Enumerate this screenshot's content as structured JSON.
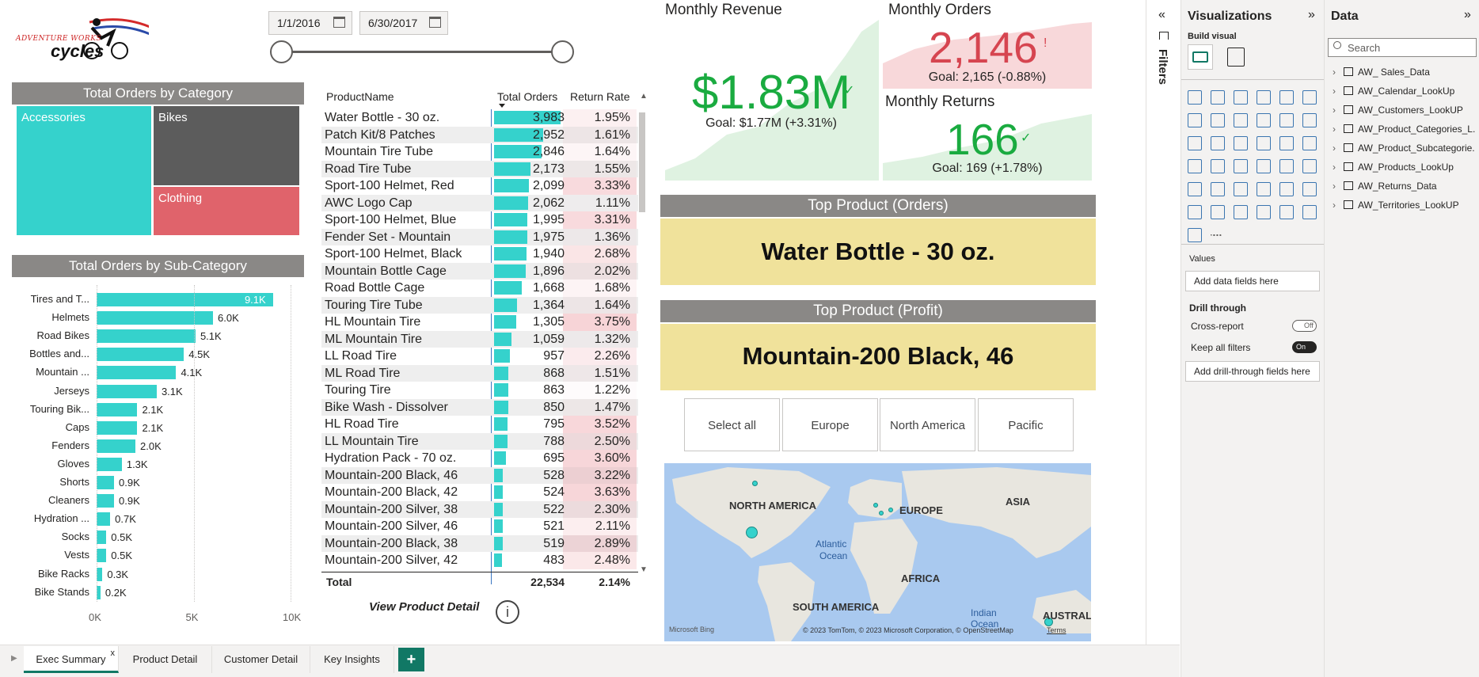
{
  "logo": {
    "text": "ADVENTURE WORKS",
    "text2": "cycles"
  },
  "date_range": {
    "start": "1/1/2016",
    "end": "6/30/2017"
  },
  "category_chart": {
    "title": "Total Orders by Category",
    "tiles": [
      {
        "label": "Accessories",
        "color": "#35d2cc"
      },
      {
        "label": "Bikes",
        "color": "#5c5c5c"
      },
      {
        "label": "Clothing",
        "color": "#e0636b"
      }
    ]
  },
  "subcategory_chart": {
    "title": "Total Orders by Sub-Category",
    "axis_ticks": [
      "0K",
      "5K",
      "10K"
    ]
  },
  "chart_data": {
    "type": "bar",
    "title": "Total Orders by Sub-Category",
    "categories": [
      "Tires and T...",
      "Helmets",
      "Road Bikes",
      "Bottles and...",
      "Mountain ...",
      "Jerseys",
      "Touring Bik...",
      "Caps",
      "Fenders",
      "Gloves",
      "Shorts",
      "Cleaners",
      "Hydration ...",
      "Socks",
      "Vests",
      "Bike Racks",
      "Bike Stands"
    ],
    "values": [
      9100,
      6000,
      5100,
      4500,
      4100,
      3100,
      2100,
      2100,
      2000,
      1300,
      900,
      900,
      700,
      500,
      500,
      300,
      200
    ],
    "labels": [
      "9.1K",
      "6.0K",
      "5.1K",
      "4.5K",
      "4.1K",
      "3.1K",
      "2.1K",
      "2.1K",
      "2.0K",
      "1.3K",
      "0.9K",
      "0.9K",
      "0.7K",
      "0.5K",
      "0.5K",
      "0.3K",
      "0.2K"
    ],
    "xlim": [
      0,
      10000
    ],
    "orientation": "horizontal"
  },
  "product_table": {
    "headers": [
      "ProductName",
      "Total Orders",
      "Return Rate"
    ],
    "rows": [
      [
        "Water Bottle - 30 oz.",
        "3,983",
        "1.95%"
      ],
      [
        "Patch Kit/8 Patches",
        "2,952",
        "1.61%"
      ],
      [
        "Mountain Tire Tube",
        "2,846",
        "1.64%"
      ],
      [
        "Road Tire Tube",
        "2,173",
        "1.55%"
      ],
      [
        "Sport-100 Helmet, Red",
        "2,099",
        "3.33%"
      ],
      [
        "AWC Logo Cap",
        "2,062",
        "1.11%"
      ],
      [
        "Sport-100 Helmet, Blue",
        "1,995",
        "3.31%"
      ],
      [
        "Fender Set - Mountain",
        "1,975",
        "1.36%"
      ],
      [
        "Sport-100 Helmet, Black",
        "1,940",
        "2.68%"
      ],
      [
        "Mountain Bottle Cage",
        "1,896",
        "2.02%"
      ],
      [
        "Road Bottle Cage",
        "1,668",
        "1.68%"
      ],
      [
        "Touring Tire Tube",
        "1,364",
        "1.64%"
      ],
      [
        "HL Mountain Tire",
        "1,305",
        "3.75%"
      ],
      [
        "ML Mountain Tire",
        "1,059",
        "1.32%"
      ],
      [
        "LL Road Tire",
        "957",
        "2.26%"
      ],
      [
        "ML Road Tire",
        "868",
        "1.51%"
      ],
      [
        "Touring Tire",
        "863",
        "1.22%"
      ],
      [
        "Bike Wash - Dissolver",
        "850",
        "1.47%"
      ],
      [
        "HL Road Tire",
        "795",
        "3.52%"
      ],
      [
        "LL Mountain Tire",
        "788",
        "2.50%"
      ],
      [
        "Hydration Pack - 70 oz.",
        "695",
        "3.60%"
      ],
      [
        "Mountain-200 Black, 46",
        "528",
        "3.22%"
      ],
      [
        "Mountain-200 Black, 42",
        "524",
        "3.63%"
      ],
      [
        "Mountain-200 Silver, 38",
        "522",
        "2.30%"
      ],
      [
        "Mountain-200 Silver, 46",
        "521",
        "2.11%"
      ],
      [
        "Mountain-200 Black, 38",
        "519",
        "2.89%"
      ],
      [
        "Mountain-200 Silver, 42",
        "483",
        "2.48%"
      ]
    ],
    "total": [
      "Total",
      "22,534",
      "2.14%"
    ],
    "detail_link": "View Product Detail"
  },
  "kpis": {
    "revenue": {
      "title": "Monthly Revenue",
      "value": "$1.83M",
      "goal": "Goal: $1.77M (+3.31%)",
      "status": "above",
      "color": "#1aab40"
    },
    "orders": {
      "title": "Monthly Orders",
      "value": "2,146",
      "goal": "Goal: 2,165 (-0.88%)",
      "status": "below",
      "color": "#d64550"
    },
    "returns": {
      "title": "Monthly Returns",
      "value": "166",
      "goal": "Goal: 169 (+1.78%)",
      "status": "above",
      "color": "#1aab40"
    }
  },
  "top_product": {
    "orders_title": "Top Product (Orders)",
    "orders_value": "Water Bottle - 30 oz.",
    "profit_title": "Top Product (Profit)",
    "profit_value": "Mountain-200 Black, 46"
  },
  "region_slicer": [
    "Select all",
    "Europe",
    "North America",
    "Pacific"
  ],
  "map": {
    "labels": [
      "NORTH AMERICA",
      "EUROPE",
      "ASIA",
      "AFRICA",
      "SOUTH AMERICA",
      "Atlantic",
      "Ocean",
      "Indian",
      "Ocean",
      "AUSTRALI"
    ],
    "attribution": "© 2023 TomTom, © 2023 Microsoft Corporation, © OpenStreetMap",
    "terms": "Terms",
    "brand": "Microsoft Bing"
  },
  "filters_pane": {
    "label": "Filters"
  },
  "viz_pane": {
    "title": "Visualizations",
    "build_visual": "Build visual",
    "values_label": "Values",
    "values_placeholder": "Add data fields here",
    "drill_label": "Drill through",
    "cross_report": "Cross-report",
    "cross_report_state": "Off",
    "keep_filters": "Keep all filters",
    "keep_filters_state": "On",
    "drill_placeholder": "Add drill-through fields here"
  },
  "data_pane": {
    "title": "Data",
    "search_placeholder": "Search",
    "tables": [
      "AW_ Sales_Data",
      "AW_Calendar_LookUp",
      "AW_Customers_LookUP",
      "AW_Product_Categories_L...",
      "AW_Product_Subcategorie...",
      "AW_Products_LookUp",
      "AW_Returns_Data",
      "AW_Territories_LookUP"
    ]
  },
  "tabs": [
    {
      "label": "Exec Summary",
      "active": true
    },
    {
      "label": "Product Detail",
      "active": false
    },
    {
      "label": "Customer Detail",
      "active": false
    },
    {
      "label": "Key Insights",
      "active": false
    }
  ],
  "add_tab": "+"
}
